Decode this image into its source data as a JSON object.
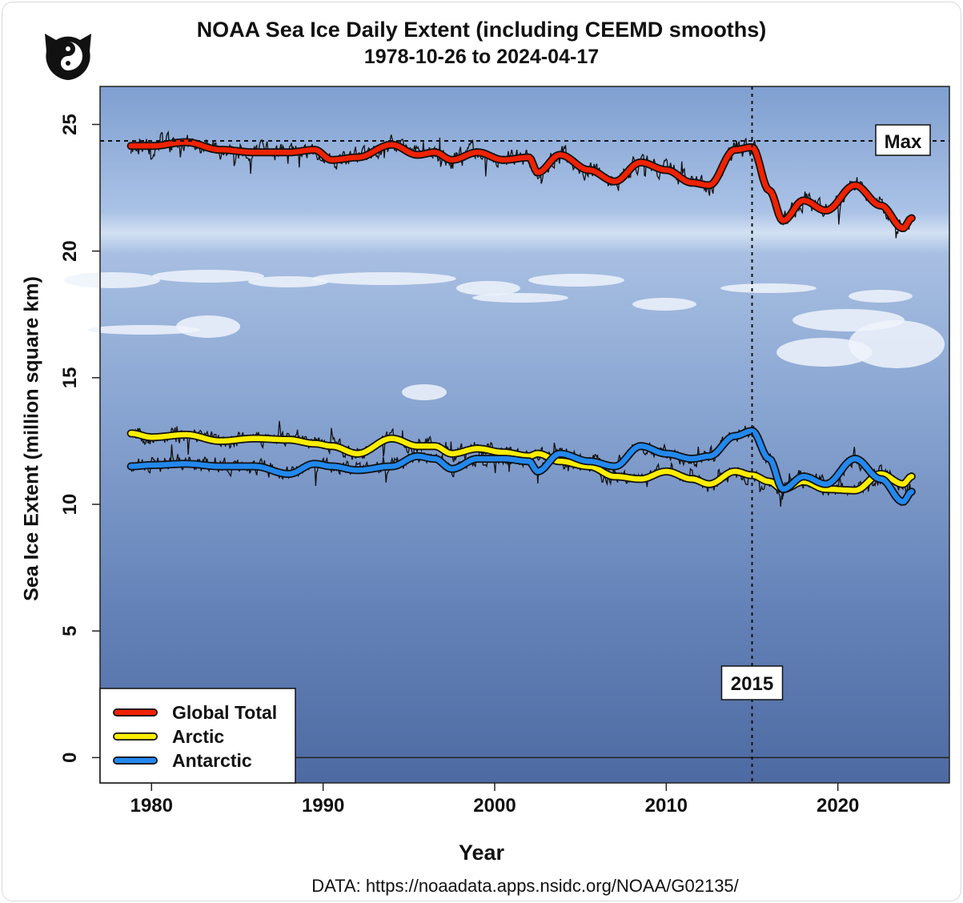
{
  "chart_data": {
    "type": "line",
    "title": "NOAA Sea Ice Daily Extent  (including CEEMD smooths)",
    "subtitle": "1978-10-26 to 2024-04-17",
    "xlabel": "Year",
    "ylabel": "Sea Ice Extent (million square km)",
    "source": "DATA: https://noaadata.apps.nsidc.org/NOAA/G02135/",
    "xlim": [
      1977,
      2026.5
    ],
    "ylim": [
      -1,
      26.5
    ],
    "x_ticks": [
      1980,
      1990,
      2000,
      2010,
      2020
    ],
    "y_ticks": [
      0,
      5,
      10,
      15,
      20,
      25
    ],
    "legend_position": "bottom-left",
    "legend": [
      "Global Total",
      "Arctic",
      "Antarctic"
    ],
    "annotations": {
      "max_label": "Max",
      "max_value": 24.35,
      "vline_label": "2015",
      "vline_x": 2015
    },
    "smooth_x": [
      1978.8,
      1980,
      1982,
      1984,
      1986,
      1988,
      1989.5,
      1990.5,
      1992,
      1994,
      1995.5,
      1996.5,
      1997.5,
      1999,
      2000.5,
      2002,
      2002.5,
      2003.8,
      2005.5,
      2007,
      2008.5,
      2010,
      2011.5,
      2012.5,
      2014,
      2015,
      2016,
      2016.8,
      2018,
      2019.3,
      2021,
      2022.5,
      2023.8,
      2024.3
    ],
    "series": [
      {
        "name": "Global Total",
        "color": "#ee2200",
        "values": [
          24.15,
          24.15,
          24.3,
          24.0,
          23.9,
          23.9,
          24.0,
          23.6,
          23.7,
          24.2,
          23.8,
          23.9,
          23.6,
          23.9,
          23.6,
          23.7,
          23.1,
          23.8,
          23.2,
          22.75,
          23.5,
          23.2,
          22.7,
          22.6,
          24.0,
          24.1,
          22.4,
          21.2,
          22.0,
          21.6,
          22.6,
          21.8,
          20.9,
          21.3
        ]
      },
      {
        "name": "Arctic",
        "color": "#ffee00",
        "values": [
          12.8,
          12.65,
          12.75,
          12.5,
          12.6,
          12.55,
          12.4,
          12.3,
          12.0,
          12.6,
          12.3,
          12.3,
          12.0,
          12.2,
          12.05,
          11.9,
          12.0,
          11.7,
          11.5,
          11.1,
          11.0,
          11.3,
          11.0,
          10.8,
          11.3,
          11.15,
          10.9,
          10.6,
          10.9,
          10.6,
          10.55,
          11.2,
          10.8,
          11.1
        ]
      },
      {
        "name": "Antarctic",
        "color": "#2288ee",
        "values": [
          11.5,
          11.55,
          11.6,
          11.5,
          11.5,
          11.2,
          11.6,
          11.5,
          11.35,
          11.5,
          11.9,
          11.8,
          11.4,
          11.8,
          11.8,
          11.7,
          11.3,
          12.0,
          11.7,
          11.5,
          12.3,
          12.0,
          11.8,
          11.9,
          12.7,
          12.9,
          11.8,
          10.6,
          11.1,
          10.8,
          11.8,
          11.0,
          10.1,
          10.5
        ]
      }
    ]
  }
}
